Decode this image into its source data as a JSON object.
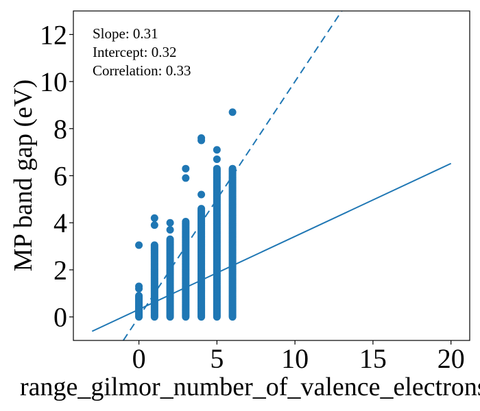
{
  "chart_data": {
    "type": "scatter",
    "xlabel": "range_gilmor_number_of_valence_electrons",
    "ylabel": "MP band gap (eV)",
    "xlim": [
      -4.2,
      21.2
    ],
    "ylim": [
      -1.0,
      13.0
    ],
    "x_ticks": [
      0,
      5,
      10,
      15,
      20
    ],
    "y_ticks": [
      0,
      2,
      4,
      6,
      8,
      10,
      12
    ],
    "annotations": {
      "slope": "Slope: 0.31",
      "intercept": "Intercept: 0.32",
      "correlation": "Correlation: 0.33"
    },
    "fit_line": {
      "slope": 0.31,
      "intercept": 0.32,
      "x_range": [
        -3,
        20
      ]
    },
    "identity_line": {
      "slope": 1,
      "intercept": 0,
      "style": "dashed"
    },
    "series": [
      {
        "x": 0,
        "y_range": [
          0,
          0.9
        ],
        "outliers": [
          1.2,
          1.3,
          3.05
        ]
      },
      {
        "x": 1,
        "y_range": [
          0,
          3.05
        ],
        "outliers": [
          3.9,
          4.2
        ]
      },
      {
        "x": 2,
        "y_range": [
          0,
          3.3
        ],
        "outliers": [
          3.7,
          4.0
        ]
      },
      {
        "x": 3,
        "y_range": [
          0,
          4.05
        ],
        "outliers": [
          5.9,
          6.3
        ]
      },
      {
        "x": 4,
        "y_range": [
          0,
          4.6
        ],
        "outliers": [
          5.2,
          7.5,
          7.6
        ]
      },
      {
        "x": 5,
        "y_range": [
          0,
          6.3
        ],
        "outliers": [
          6.7,
          7.1
        ]
      },
      {
        "x": 6,
        "y_range": [
          0,
          6.3
        ],
        "outliers": [
          8.7
        ]
      }
    ]
  }
}
